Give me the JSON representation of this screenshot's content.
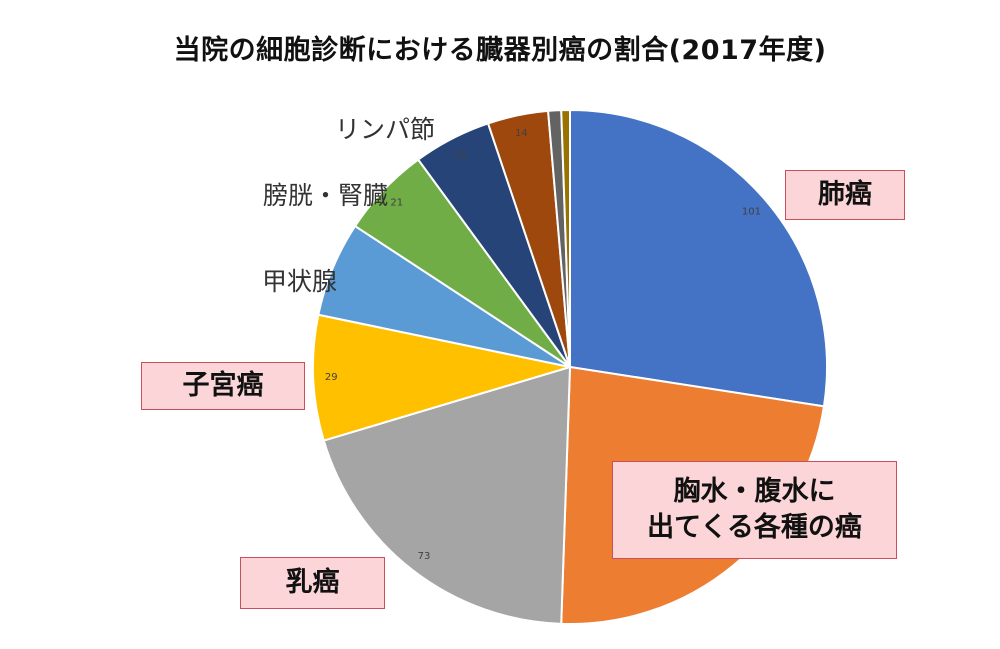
{
  "chart_data": {
    "type": "pie",
    "title": "当院の細胞診断における臓器別癌の割合(2017年度)",
    "slices": [
      {
        "value": 101,
        "color": "#4472c4"
      },
      {
        "value": 85,
        "color": "#ed7d31"
      },
      {
        "value": 73,
        "color": "#a5a5a5"
      },
      {
        "value": 29,
        "color": "#ffc000"
      },
      {
        "value": 22,
        "color": "#5b9bd5"
      },
      {
        "value": 21,
        "color": "#70ad47"
      },
      {
        "value": 18,
        "color": "#264478"
      },
      {
        "value": 14,
        "color": "#9e480e"
      },
      {
        "value": 3,
        "color": "#636363"
      },
      {
        "value": 2,
        "color": "#997300"
      }
    ],
    "data_labels": [
      "101",
      "73",
      "29",
      "21",
      "18",
      "14"
    ],
    "labels": {
      "lung": "肺癌",
      "effusion_line1": "胸水・腹水に",
      "effusion_line2": "出てくる各種の癌",
      "breast": "乳癌",
      "uterus": "子宮癌",
      "thyroid": "甲状腺",
      "bladder_kidney": "膀胱・腎臓",
      "lymph": "リンパ節"
    }
  }
}
